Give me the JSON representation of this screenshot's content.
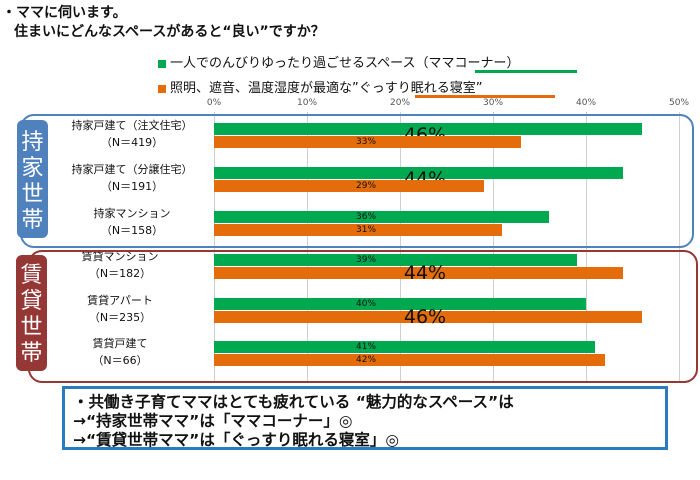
{
  "header": {
    "line1": "・ママに伺います。",
    "line2": "住まいにどんなスペースがあると“良い”ですか？"
  },
  "chart_data": {
    "type": "bar",
    "orientation": "horizontal",
    "xlim": [
      0,
      50
    ],
    "x_ticks": [
      "0%",
      "10%",
      "20%",
      "30%",
      "40%",
      "50%"
    ],
    "grid": true,
    "legend_position": "top",
    "series": [
      {
        "name": "一人でのんびりゆったり過ごせるスペース（ママコーナー）",
        "color": "#00a94f",
        "values": [
          46,
          44,
          36,
          39,
          40,
          41
        ]
      },
      {
        "name": "照明、遮音、温度湿度が最適な”ぐっすり眠れる寝室”",
        "color": "#e46c0a",
        "values": [
          33,
          29,
          31,
          44,
          46,
          42
        ]
      }
    ],
    "categories": [
      {
        "name": "持家戸建て（注文住宅）",
        "n": "（N＝419）"
      },
      {
        "name": "持家戸建て（分譲住宅）",
        "n": "（N＝191）"
      },
      {
        "name": "持家マンション",
        "n": "（N＝158）"
      },
      {
        "name": "賃貸マンション",
        "n": "（N＝182）"
      },
      {
        "name": "賃貸アパート",
        "n": "（N＝235）"
      },
      {
        "name": "賃貸戸建て",
        "n": "（N＝66）"
      }
    ],
    "data_labels": [
      [
        "46%",
        "33%"
      ],
      [
        "44%",
        "29%"
      ],
      [
        "36%",
        "31%"
      ],
      [
        "39%",
        "44%"
      ],
      [
        "40%",
        "46%"
      ],
      [
        "41%",
        "42%"
      ]
    ],
    "highlighted_labels": [
      [
        true,
        false
      ],
      [
        true,
        false
      ],
      [
        false,
        false
      ],
      [
        false,
        true
      ],
      [
        false,
        true
      ],
      [
        false,
        false
      ]
    ],
    "groups": [
      {
        "label": "持家世帯",
        "color": "#4f81bd",
        "rows": [
          0,
          1,
          2
        ]
      },
      {
        "label": "賃貸世帯",
        "color": "#953735",
        "rows": [
          3,
          4,
          5
        ]
      }
    ]
  },
  "summary": {
    "line1": "・共働き子育てママはとても疲れている “魅力的なスペース”は",
    "line2": "→“持家世帯ママ”は「ママコーナー」◎",
    "line3": "→“賃貸世帯ママ”は「ぐっすり眠れる寝室」◎"
  }
}
